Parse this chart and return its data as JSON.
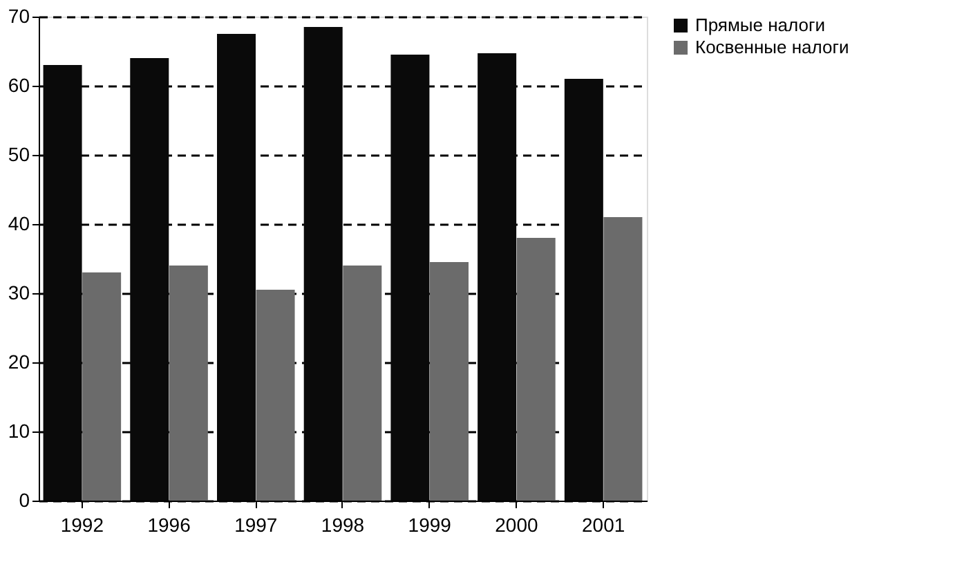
{
  "chart_data": {
    "type": "bar",
    "categories": [
      "1992",
      "1996",
      "1997",
      "1998",
      "1999",
      "2000",
      "2001"
    ],
    "series": [
      {
        "name": "Прямые налоги",
        "color": "#0a0a0a",
        "values": [
          63,
          64,
          67.5,
          68.5,
          64.5,
          64.7,
          61
        ]
      },
      {
        "name": "Косвенные налоги",
        "color": "#6b6b6b",
        "values": [
          33,
          34,
          30.5,
          34,
          34.5,
          38,
          41
        ]
      }
    ],
    "ylim": [
      0,
      70
    ],
    "yticks": [
      0,
      10,
      20,
      30,
      40,
      50,
      60,
      70
    ],
    "grid": "y",
    "legend": "right"
  }
}
